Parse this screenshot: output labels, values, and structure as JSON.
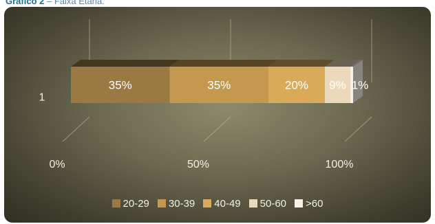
{
  "page": {
    "title_prefix": "Gráfico 2",
    "title_rest": " – Faixa Etária."
  },
  "chart_data": {
    "type": "bar",
    "orientation": "horizontal",
    "stacked": "percent",
    "style": "3d",
    "categories": [
      "1"
    ],
    "series": [
      {
        "name": "20-29",
        "values": [
          35
        ],
        "label": "35%",
        "color": "#9a7a42"
      },
      {
        "name": "30-39",
        "values": [
          35
        ],
        "label": "35%",
        "color": "#c4984e"
      },
      {
        "name": "40-49",
        "values": [
          20
        ],
        "label": "20%",
        "color": "#d9aa58"
      },
      {
        "name": "50-60",
        "values": [
          9
        ],
        "label": "9%",
        "color": "#ecd9ba"
      },
      {
        "name": ">60",
        "values": [
          1
        ],
        "label": "1%",
        "color": "#f7f2e8"
      }
    ],
    "xlim": [
      0,
      100
    ],
    "xticks": [
      0,
      50,
      100
    ],
    "xtick_labels": [
      "0%",
      "50%",
      "100%"
    ],
    "legend_position": "bottom",
    "grid": true
  }
}
